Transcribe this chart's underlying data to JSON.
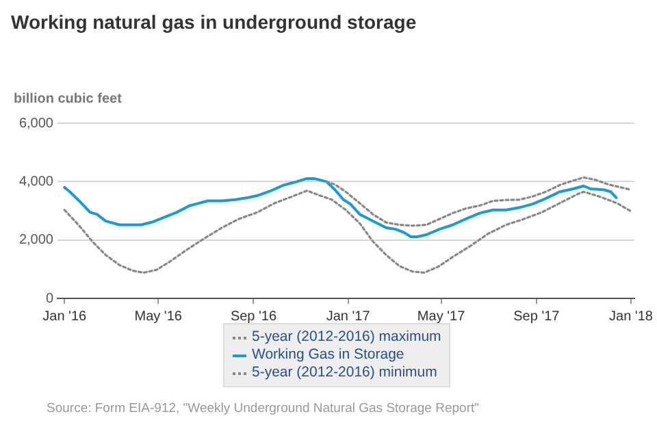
{
  "chart_data": {
    "type": "line",
    "title": "Working natural gas in underground storage",
    "ylabel": "billion cubic feet",
    "xlim": [
      "2015-12-23",
      "2018-01-05"
    ],
    "xticks": [
      {
        "value": "2016-01-01",
        "label": "Jan '16"
      },
      {
        "value": "2016-05-01",
        "label": "May '16"
      },
      {
        "value": "2016-09-01",
        "label": "Sep '16"
      },
      {
        "value": "2017-01-01",
        "label": "Jan '17"
      },
      {
        "value": "2017-05-01",
        "label": "May '17"
      },
      {
        "value": "2017-09-01",
        "label": "Sep '17"
      },
      {
        "value": "2018-01-01",
        "label": "Jan '18"
      }
    ],
    "ylim": [
      0,
      6000
    ],
    "yticks": [
      {
        "value": 0,
        "label": "0"
      },
      {
        "value": 2000,
        "label": "2,000"
      },
      {
        "value": 4000,
        "label": "4,000"
      },
      {
        "value": 6000,
        "label": "6,000"
      }
    ],
    "grid": "y",
    "legend": "bottom",
    "marker": "none",
    "annotations": [
      "Source: Form EIA-912, \"Weekly Underground Natural Gas Storage Report\""
    ],
    "series": [
      {
        "name": "5-year (2012-2016) maximum",
        "color": "#888888",
        "line_style": "dotted",
        "x": [
          "2016-12-04",
          "2016-12-15",
          "2016-12-29",
          "2017-01-16",
          "2017-02-02",
          "2017-02-19",
          "2017-03-08",
          "2017-03-25",
          "2017-04-12",
          "2017-04-29",
          "2017-05-16",
          "2017-06-02",
          "2017-06-20",
          "2017-07-07",
          "2017-07-24",
          "2017-08-10",
          "2017-08-27",
          "2017-09-13",
          "2017-10-01",
          "2017-10-18",
          "2017-11-01",
          "2017-11-16",
          "2017-12-03",
          "2018-01-01"
        ],
        "values": [
          4000,
          3900,
          3650,
          3260,
          2880,
          2600,
          2520,
          2490,
          2520,
          2720,
          2920,
          3080,
          3180,
          3340,
          3370,
          3380,
          3490,
          3650,
          3880,
          4030,
          4140,
          4060,
          3900,
          3720
        ]
      },
      {
        "name": "Working Gas in Storage",
        "color": "#1a9ad6",
        "line_style": "solid",
        "x": [
          "2016-01-01",
          "2016-01-08",
          "2016-01-20",
          "2016-02-03",
          "2016-02-12",
          "2016-02-23",
          "2016-03-12",
          "2016-03-23",
          "2016-04-09",
          "2016-04-24",
          "2016-05-08",
          "2016-05-25",
          "2016-06-11",
          "2016-07-04",
          "2016-07-22",
          "2016-08-08",
          "2016-08-25",
          "2016-09-06",
          "2016-09-23",
          "2016-10-10",
          "2016-10-27",
          "2016-11-08",
          "2016-11-19",
          "2016-12-04",
          "2016-12-15",
          "2016-12-26",
          "2017-01-04",
          "2017-01-16",
          "2017-02-02",
          "2017-02-19",
          "2017-03-03",
          "2017-03-14",
          "2017-03-23",
          "2017-03-31",
          "2017-04-12",
          "2017-04-29",
          "2017-05-16",
          "2017-06-02",
          "2017-06-20",
          "2017-07-07",
          "2017-07-24",
          "2017-08-10",
          "2017-08-27",
          "2017-09-13",
          "2017-10-01",
          "2017-10-18",
          "2017-11-01",
          "2017-11-10",
          "2017-11-27",
          "2017-12-06",
          "2017-12-13"
        ],
        "values": [
          3800,
          3650,
          3340,
          2950,
          2880,
          2650,
          2520,
          2520,
          2520,
          2620,
          2770,
          2950,
          3180,
          3340,
          3340,
          3380,
          3450,
          3520,
          3680,
          3880,
          4000,
          4100,
          4100,
          4000,
          3720,
          3380,
          3230,
          2880,
          2650,
          2420,
          2370,
          2260,
          2110,
          2110,
          2180,
          2370,
          2520,
          2720,
          2920,
          3030,
          3030,
          3110,
          3230,
          3420,
          3650,
          3750,
          3850,
          3750,
          3720,
          3650,
          3450
        ]
      },
      {
        "name": "5-year (2012-2016) minimum",
        "color": "#888888",
        "line_style": "dotted",
        "x": [
          "2016-01-01",
          "2016-01-20",
          "2016-02-06",
          "2016-02-23",
          "2016-03-12",
          "2016-03-29",
          "2016-04-12",
          "2016-04-29",
          "2016-05-16",
          "2016-06-06",
          "2016-06-28",
          "2016-07-22",
          "2016-08-13",
          "2016-09-06",
          "2016-09-28",
          "2016-10-21",
          "2016-11-09",
          "2016-11-24",
          "2016-12-11",
          "2016-12-29",
          "2017-01-16",
          "2017-02-02",
          "2017-02-19",
          "2017-03-08",
          "2017-03-25",
          "2017-04-09",
          "2017-04-27",
          "2017-05-16",
          "2017-06-08",
          "2017-07-01",
          "2017-07-24",
          "2017-08-16",
          "2017-09-08",
          "2017-10-01",
          "2017-10-24",
          "2017-11-01",
          "2017-11-21",
          "2017-12-14",
          "2018-01-01"
        ],
        "values": [
          3030,
          2490,
          1950,
          1490,
          1140,
          950,
          880,
          980,
          1260,
          1650,
          2030,
          2420,
          2720,
          2950,
          3260,
          3490,
          3690,
          3540,
          3380,
          3030,
          2570,
          1950,
          1490,
          1110,
          920,
          880,
          1080,
          1420,
          1800,
          2220,
          2520,
          2720,
          2950,
          3260,
          3570,
          3650,
          3490,
          3260,
          2980
        ]
      }
    ]
  }
}
